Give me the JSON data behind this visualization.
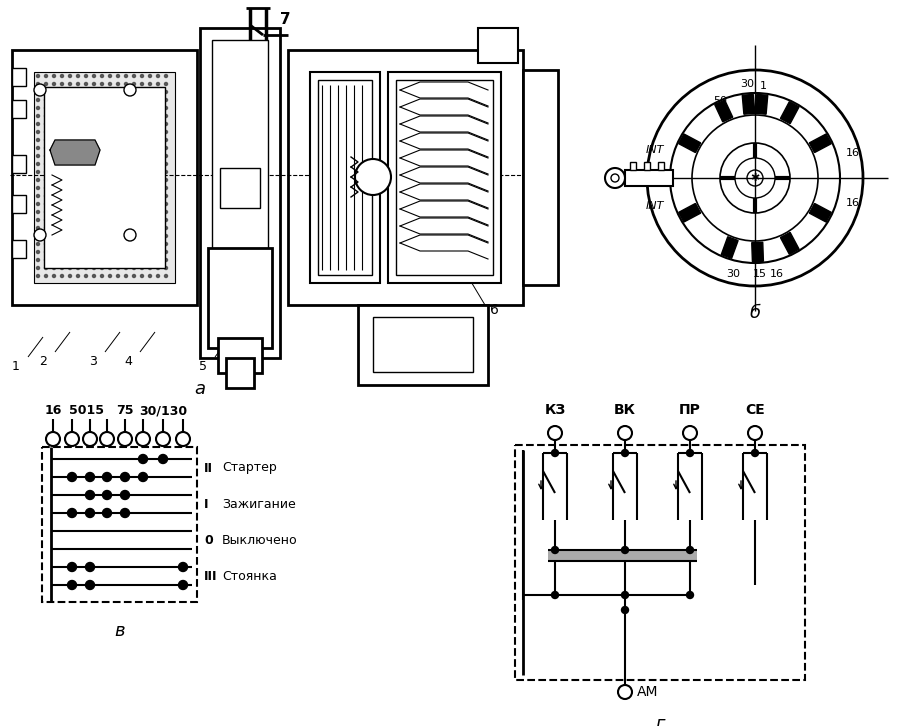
{
  "bg_color": "#ffffff",
  "fig_width": 9.2,
  "fig_height": 7.26,
  "dpi": 100,
  "label_a": "а",
  "label_b": "б",
  "label_v": "в",
  "label_g": "г",
  "mode_texts": [
    "Стартер",
    "Зажигание",
    "Выключено",
    "Стоянка"
  ],
  "contact_labels": [
    "КЗ",
    "ВК",
    "ПР",
    "СЕ"
  ],
  "am_label": "АМ"
}
